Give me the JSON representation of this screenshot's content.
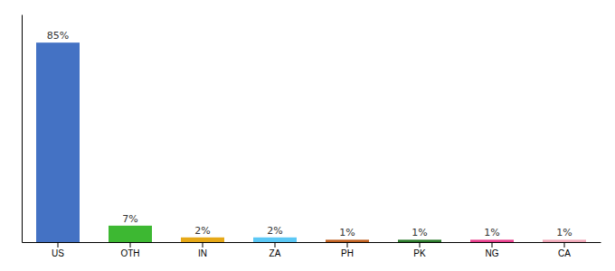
{
  "chart_data": {
    "type": "bar",
    "categories": [
      "US",
      "OTH",
      "IN",
      "ZA",
      "PH",
      "PK",
      "NG",
      "CA"
    ],
    "values": [
      85,
      7,
      2,
      2,
      1,
      1,
      1,
      1
    ],
    "value_labels": [
      "85%",
      "7%",
      "2%",
      "2%",
      "1%",
      "1%",
      "1%",
      "1%"
    ],
    "colors": [
      "#4472c4",
      "#3db832",
      "#e6a817",
      "#5bc8f5",
      "#c06020",
      "#2a7a2a",
      "#e83e8c",
      "#f0a8b8"
    ],
    "ylim": [
      0,
      97
    ],
    "data_labels": true,
    "tick_labels": "x"
  }
}
